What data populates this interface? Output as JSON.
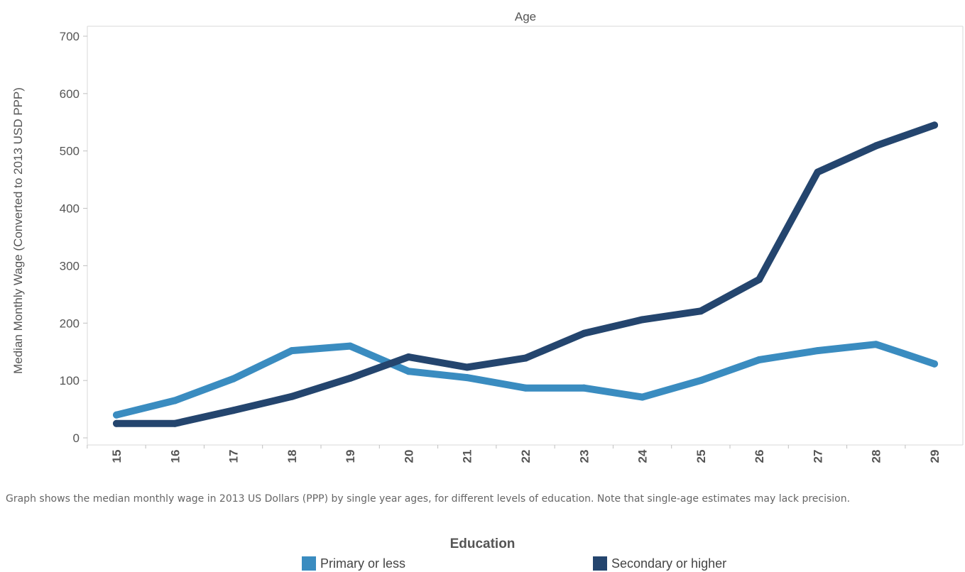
{
  "chart_data": {
    "type": "line",
    "xlabel": "Age",
    "ylabel": "Median Monthly Wage (Converted to 2013 USD PPP)",
    "categories": [
      "15",
      "16",
      "17",
      "18",
      "19",
      "20",
      "21",
      "22",
      "23",
      "24",
      "25",
      "26",
      "27",
      "28",
      "29"
    ],
    "ylim": [
      0,
      700
    ],
    "yticks": [
      0,
      100,
      200,
      300,
      400,
      500,
      600,
      700
    ],
    "grid": false,
    "legend_position": "bottom",
    "legend_title": "Education",
    "series": [
      {
        "name": "Primary or less",
        "color": "#3a8cc0",
        "values": [
          40,
          65,
          103,
          152,
          160,
          116,
          105,
          87,
          87,
          71,
          100,
          136,
          152,
          163,
          129
        ]
      },
      {
        "name": "Secondary or higher",
        "color": "#24456e",
        "values": [
          25,
          25,
          48,
          72,
          104,
          141,
          123,
          139,
          182,
          206,
          221,
          276,
          463,
          509,
          545
        ]
      }
    ]
  },
  "caption": "Graph shows the median monthly wage in 2013 US Dollars (PPP) by single year ages, for different levels of education. Note that single-age estimates may lack precision."
}
